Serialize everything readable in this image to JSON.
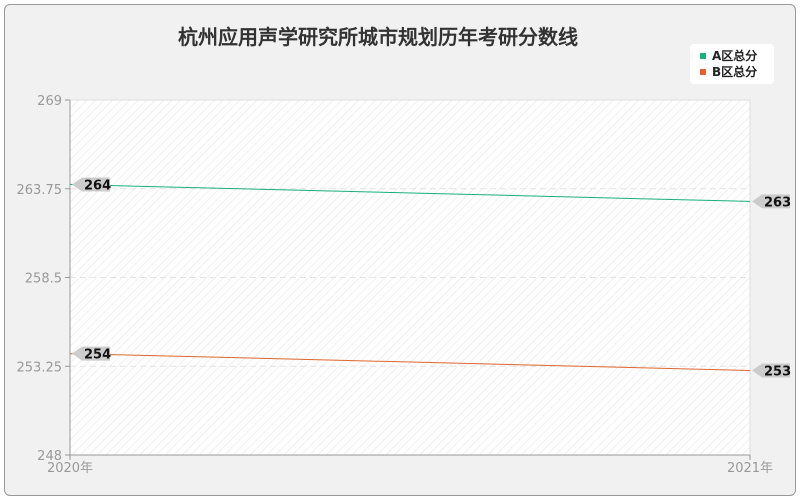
{
  "chart_data": {
    "type": "line",
    "title": "杭州应用声学研究所城市规划历年考研分数线",
    "categories": [
      "2020年",
      "2021年"
    ],
    "ylim": [
      248,
      269
    ],
    "yticks": [
      "248",
      "253.25",
      "258.5",
      "263.75",
      "269"
    ],
    "grid": true,
    "legend_position": "top-right",
    "series": [
      {
        "name": "A区总分",
        "values": [
          264,
          263
        ],
        "color": "#1aaf7c"
      },
      {
        "name": "B区总分",
        "values": [
          254,
          253
        ],
        "color": "#e0662f"
      }
    ]
  }
}
